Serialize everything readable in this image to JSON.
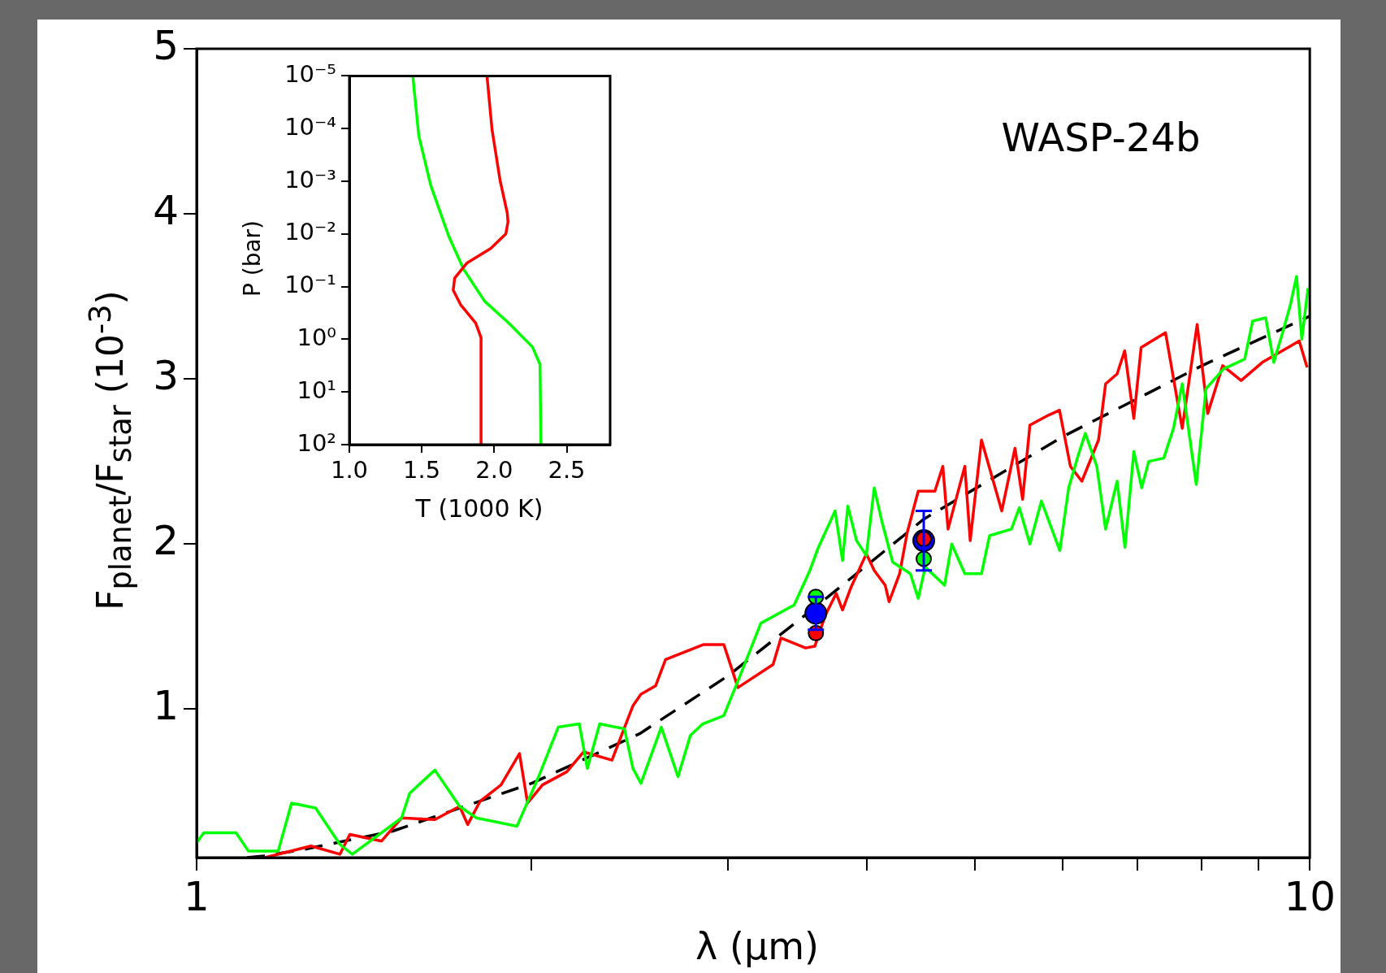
{
  "chart_data": [
    {
      "type": "line",
      "xlabel": "λ (μm)",
      "ylabel": "F$_{planet}$/F$_{star}$  (10$^{-3}$)",
      "annotations": [
        "WASP-24b"
      ],
      "log": "x",
      "xlim": [
        1,
        10
      ],
      "xticks": [
        1,
        {
          "value": 2,
          "label": null
        },
        {
          "value": 3,
          "label": null
        },
        {
          "value": 4,
          "label": null
        },
        {
          "value": 5,
          "label": null
        },
        {
          "value": 6,
          "label": null
        },
        {
          "value": 7,
          "label": null
        },
        {
          "value": 8,
          "label": null
        },
        {
          "value": 9,
          "label": null
        },
        10
      ],
      "ylim": [
        0.1,
        5
      ],
      "yticks": [
        1,
        2,
        3,
        4,
        5
      ],
      "series": [
        {
          "color": "#00ff00",
          "x": [
            1.0,
            1.015,
            1.085,
            1.113,
            1.184,
            1.217,
            1.279,
            1.345,
            1.38,
            1.528,
            1.554,
            1.637,
            1.723,
            1.784,
            1.94,
            2.026,
            2.113,
            2.207,
            2.244,
            2.302,
            2.423,
            2.466,
            2.507,
            2.615,
            2.707,
            2.777,
            2.849,
            2.976,
            3.081,
            3.213,
            3.442,
            3.556,
            3.614,
            3.746,
            3.804,
            3.846,
            3.916,
            3.996,
            4.062,
            4.129,
            4.22,
            4.377,
            4.449,
            4.514,
            4.698,
            4.768,
            4.899,
            5.071,
            5.156,
            5.395,
            5.484,
            5.605,
            5.74,
            5.963,
            6.073,
            6.196,
            6.286,
            6.437,
            6.555,
            6.713,
            6.823,
            6.949,
            7.063,
            7.167,
            7.393,
            7.543,
            7.681,
            7.907,
            8.067,
            8.366,
            8.74,
            8.885,
            9.129,
            9.283,
            9.453,
            9.608,
            9.73,
            9.837,
            9.963
          ],
          "values": [
            0.19,
            0.25,
            0.25,
            0.14,
            0.14,
            0.43,
            0.4,
            0.18,
            0.12,
            0.34,
            0.49,
            0.63,
            0.41,
            0.34,
            0.29,
            0.58,
            0.89,
            0.91,
            0.64,
            0.91,
            0.88,
            0.64,
            0.55,
            0.89,
            0.59,
            0.84,
            0.91,
            0.96,
            1.21,
            1.52,
            1.63,
            1.84,
            1.97,
            2.2,
            1.9,
            2.23,
            2.02,
            1.93,
            2.34,
            2.13,
            1.89,
            1.82,
            1.67,
            1.86,
            1.75,
            2.0,
            1.82,
            1.82,
            2.05,
            2.09,
            2.22,
            2.0,
            2.26,
            1.96,
            2.34,
            2.54,
            2.67,
            2.47,
            2.09,
            2.38,
            1.98,
            2.56,
            2.34,
            2.5,
            2.52,
            2.7,
            2.97,
            2.36,
            2.94,
            3.06,
            3.12,
            3.35,
            3.37,
            3.1,
            3.28,
            3.45,
            3.62,
            3.24,
            3.55
          ]
        },
        {
          "color": "#ff0000",
          "x": [
            1.152,
            1.267,
            1.345,
            1.373,
            1.466,
            1.528,
            1.637,
            1.723,
            1.752,
            1.797,
            1.877,
            1.95,
            1.983,
            2.045,
            2.151,
            2.226,
            2.361,
            2.466,
            2.507,
            2.584,
            2.638,
            2.851,
            2.976,
            3.064,
            3.295,
            3.349,
            3.524,
            3.592,
            3.672,
            3.755,
            3.804,
            3.873,
            3.996,
            4.062,
            4.155,
            4.189,
            4.281,
            4.349,
            4.449,
            4.605,
            4.681,
            4.732,
            4.899,
            4.954,
            5.071,
            5.288,
            5.435,
            5.521,
            5.605,
            5.824,
            5.959,
            6.095,
            6.241,
            6.46,
            6.555,
            6.713,
            6.819,
            6.949,
            7.055,
            7.42,
            7.681,
            7.922,
            8.097,
            8.351,
            8.676,
            9.064,
            9.784,
            9.945
          ],
          "values": [
            0.1,
            0.17,
            0.12,
            0.24,
            0.2,
            0.34,
            0.33,
            0.41,
            0.3,
            0.44,
            0.54,
            0.73,
            0.43,
            0.54,
            0.62,
            0.74,
            0.69,
            1.02,
            1.09,
            1.14,
            1.3,
            1.39,
            1.39,
            1.13,
            1.27,
            1.43,
            1.37,
            1.38,
            1.57,
            1.7,
            1.6,
            1.74,
            1.94,
            1.84,
            1.75,
            1.65,
            1.82,
            2.07,
            2.32,
            2.32,
            2.47,
            2.09,
            2.47,
            2.02,
            2.63,
            2.2,
            2.58,
            2.27,
            2.72,
            2.78,
            2.81,
            2.47,
            2.38,
            2.63,
            2.97,
            3.03,
            3.17,
            2.76,
            3.19,
            3.28,
            2.7,
            3.33,
            2.79,
            3.08,
            2.99,
            3.1,
            3.23,
            3.07
          ]
        },
        {
          "color": "#000000",
          "line_style": "dashed",
          "x": [
            1.11,
            1.15,
            1.25,
            1.5,
            2,
            2.5,
            3,
            3.6,
            4.5,
            6,
            8,
            10
          ],
          "values": [
            0.1,
            0.11,
            0.15,
            0.26,
            0.55,
            0.85,
            1.2,
            1.62,
            2.15,
            2.65,
            3.08,
            3.38
          ]
        },
        {
          "type": "scatter",
          "color": "#0000ff",
          "marker": "circle",
          "x": [
            3.6,
            4.5
          ],
          "values": [
            1.58,
            2.02
          ],
          "errors": [
            0.1,
            0.18
          ]
        },
        {
          "type": "scatter",
          "color": "#00ff00",
          "marker": "circle",
          "x": [
            3.6,
            4.5
          ],
          "values": [
            1.68,
            1.91
          ]
        },
        {
          "type": "scatter",
          "color": "#ff0000",
          "marker": "circle",
          "x": [
            3.6,
            4.5
          ],
          "values": [
            1.46,
            2.03
          ]
        }
      ]
    },
    {
      "type": "line",
      "xlabel": "T (1000 K)",
      "ylabel": "P (bar)",
      "log": "y",
      "xlim": [
        1.0,
        2.8
      ],
      "xticks": [
        {
          "value": 1,
          "label": "1.0"
        },
        1.5,
        {
          "value": 2,
          "label": "2.0"
        },
        2.5
      ],
      "ylim": [
        100,
        1e-05
      ],
      "yticks": [
        {
          "value": 1e-05,
          "label": "10⁻⁵"
        },
        {
          "value": 0.0001,
          "label": "10⁻⁴"
        },
        {
          "value": 0.001,
          "label": "10⁻³"
        },
        {
          "value": 0.01,
          "label": "10⁻²"
        },
        {
          "value": 0.1,
          "label": "10⁻¹"
        },
        {
          "value": 1,
          "label": "10⁰"
        },
        {
          "value": 10,
          "label": "10¹"
        },
        {
          "value": 100,
          "label": "10²"
        }
      ],
      "series": [
        {
          "color": "#ff0000",
          "x": [
            1.95,
            1.985,
            2.04,
            2.09,
            2.095,
            2.08,
            1.975,
            1.81,
            1.727,
            1.717,
            1.768,
            1.872,
            1.909,
            1.909
          ],
          "values": [
            1e-05,
            0.000105,
            0.00095,
            0.004,
            0.0059,
            0.01,
            0.019,
            0.036,
            0.069,
            0.117,
            0.22,
            0.49,
            0.93,
            100
          ]
        },
        {
          "color": "#00ff00",
          "x": [
            1.438,
            1.479,
            1.562,
            1.686,
            1.789,
            1.934,
            2.099,
            2.264,
            2.316,
            2.322
          ],
          "values": [
            1e-05,
            0.000135,
            0.0012,
            0.011,
            0.047,
            0.19,
            0.49,
            1.4,
            3,
            100
          ]
        }
      ]
    }
  ]
}
